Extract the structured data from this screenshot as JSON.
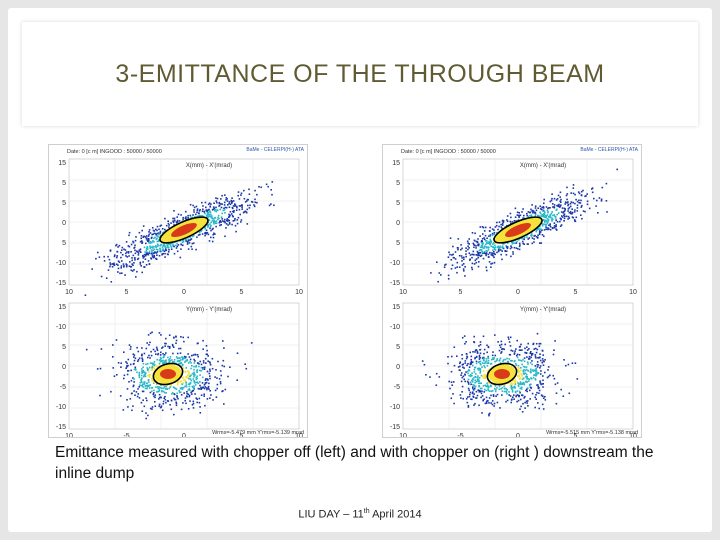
{
  "slide": {
    "title": "3-EMITTANCE OF THE THROUGH BEAM",
    "caption": "Emittance measured with chopper off (left) and with chopper on (right ) downstream the inline dump",
    "footer": {
      "prefix": "LIU DAY – 11",
      "sup": "th",
      "suffix": " April 2014"
    }
  },
  "plots": [
    {
      "id": "left",
      "top": {
        "header_left": "Date: 0 [c m]   INGOOD : 50000 / 50000",
        "header_right": "BaMe - CELERPI(H-) ATA",
        "axis_title": "X(mm) - X'(mrad)",
        "y_ticks": [
          "15",
          "5",
          "5",
          "0",
          "5",
          "-10",
          "-15"
        ],
        "x_ticks": [
          "10",
          "5",
          "0",
          "5",
          "10"
        ]
      },
      "bottom": {
        "axis_title": "Y(mm) - Y'(mrad)",
        "y_ticks": [
          "15",
          "-10",
          "5",
          "0",
          "-5",
          "-10",
          "-15"
        ],
        "x_ticks": [
          "10",
          "-5",
          "0",
          "5",
          "10"
        ],
        "footer": "Wrms=-5.479 mm  Y'rms=-5.139 mrad"
      }
    },
    {
      "id": "right",
      "top": {
        "header_left": "Date: 0 [c m]   INGOOD : 50000 / 50000",
        "header_right": "BaMe - CELERPI(H-) ATA",
        "axis_title": "X(mm) - X'(mrad)",
        "y_ticks": [
          "15",
          "5",
          "5",
          "0",
          "5",
          "-10",
          "-15"
        ],
        "x_ticks": [
          "10",
          "5",
          "0",
          "5",
          "10"
        ]
      },
      "bottom": {
        "axis_title": "Y(mm) - Y'(mrad)",
        "y_ticks": [
          "15",
          "-10",
          "5",
          "0",
          "-5",
          "-10",
          "-15"
        ],
        "x_ticks": [
          "10",
          "-5",
          "0",
          "5",
          "10"
        ],
        "footer": "Wrms=-5.515 mm  Y'rms=-5.138 mrad"
      }
    }
  ],
  "colors": {
    "title": "#605b33",
    "beam_core": "#d83a1a",
    "beam_mid": "#f5e23a",
    "beam_outer": "#27b7c8",
    "beam_halo": "#1b38a8",
    "ellipse": "#000000"
  }
}
